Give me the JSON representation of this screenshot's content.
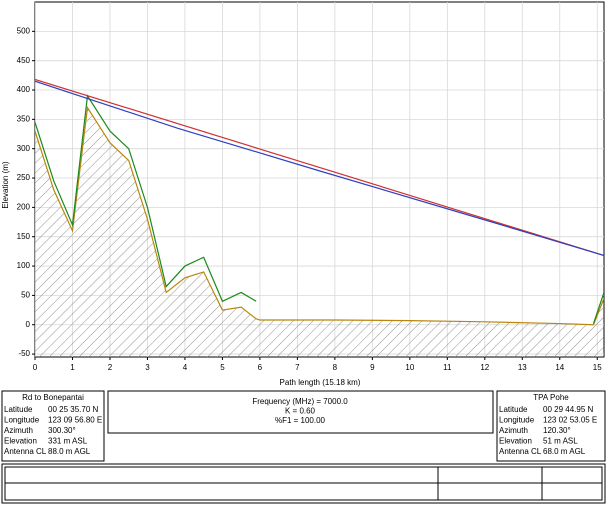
{
  "chart_data": {
    "type": "profile",
    "xlabel": "Path length (15.18 km)",
    "ylabel": "Elevation (m)",
    "xlim": [
      0,
      15.18
    ],
    "ylim": [
      -55,
      550
    ],
    "xticks": [
      0,
      1,
      2,
      3,
      4,
      5,
      6,
      7,
      8,
      9,
      10,
      11,
      12,
      13,
      14,
      15
    ],
    "yticks": [
      -50,
      0,
      50,
      100,
      150,
      200,
      250,
      300,
      350,
      400,
      450,
      500
    ],
    "grid": true,
    "series": [
      {
        "color": "#b8860b",
        "hatch": true,
        "x": [
          0,
          0.5,
          1,
          1.4,
          2,
          2.5,
          3,
          3.5,
          4,
          4.5,
          5,
          5.5,
          5.9,
          6,
          8,
          10,
          12,
          14,
          14.9,
          15.18
        ],
        "values": [
          330,
          230,
          160,
          370,
          310,
          280,
          180,
          55,
          80,
          90,
          25,
          30,
          10,
          8,
          8,
          7,
          5,
          2,
          0,
          45
        ]
      },
      {
        "color": "#1a8a1a",
        "x": [
          0,
          0.5,
          1,
          1.4,
          2,
          2.5,
          3,
          3.5,
          4,
          4.5,
          5,
          5.5,
          5.9,
          6,
          8,
          10,
          12,
          14,
          14.9,
          15.18
        ],
        "values": [
          345,
          245,
          170,
          390,
          330,
          300,
          200,
          65,
          100,
          115,
          40,
          55,
          40,
          null,
          null,
          null,
          null,
          null,
          2,
          55
        ]
      },
      {
        "color": "#d03030",
        "x": [
          0,
          15.18
        ],
        "values": [
          418,
          118
        ]
      },
      {
        "color": "#3040c0",
        "x": [
          0,
          3.8,
          7.6,
          11.4,
          15.18
        ],
        "values": [
          415,
          335,
          262,
          190,
          118
        ]
      }
    ]
  },
  "sites": [
    {
      "name": "Rd to Bonepantai",
      "rows": [
        [
          "Latitude",
          "00 25 35.70 N"
        ],
        [
          "Longitude",
          "123 09 56.80 E"
        ],
        [
          "Azimuth",
          "300.30°"
        ],
        [
          "Elevation",
          "331 m ASL"
        ],
        [
          "Antenna CL",
          "88.0 m AGL"
        ]
      ]
    },
    {
      "name": "TPA Pohe",
      "rows": [
        [
          "Latitude",
          "00 29 44.95 N"
        ],
        [
          "Longitude",
          "123 02 53.05 E"
        ],
        [
          "Azimuth",
          "120.30°"
        ],
        [
          "Elevation",
          "51 m ASL"
        ],
        [
          "Antenna CL",
          "68.0 m AGL"
        ]
      ]
    }
  ],
  "link": [
    "Frequency (MHz) = 7000.0",
    "K = 0.60",
    "%F1 = 100.00"
  ]
}
